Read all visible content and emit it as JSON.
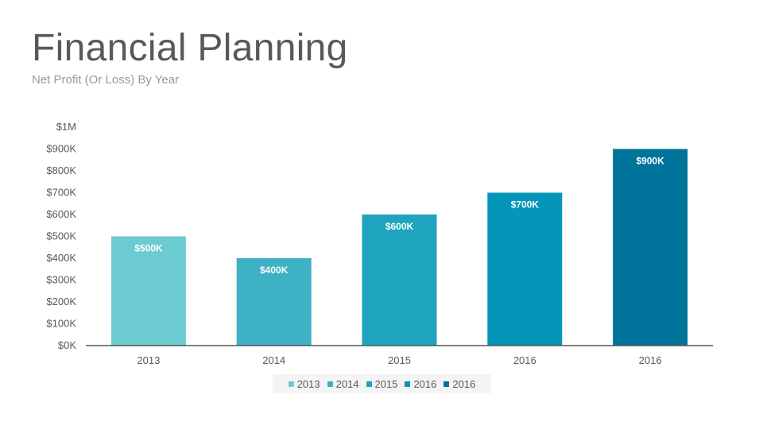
{
  "header": {
    "title": "Financial Planning",
    "subtitle": "Net Profit (Or Loss) By Year"
  },
  "chart_data": {
    "type": "bar",
    "categories": [
      "2013",
      "2014",
      "2015",
      "2016",
      "2016"
    ],
    "values": [
      500000,
      400000,
      600000,
      700000,
      900000
    ],
    "data_labels": [
      "$500K",
      "$400K",
      "$600K",
      "$700K",
      "$900K"
    ],
    "colors": [
      "#6ccbd1",
      "#3eb1c4",
      "#1ea4bf",
      "#0496b8",
      "#00739a"
    ],
    "ylim": [
      0,
      1000000
    ],
    "yticks": [
      0,
      100000,
      200000,
      300000,
      400000,
      500000,
      600000,
      700000,
      800000,
      900000,
      1000000
    ],
    "ytick_labels": [
      "$0K",
      "$100K",
      "$200K",
      "$300K",
      "$400K",
      "$500K",
      "$600K",
      "$700K",
      "$800K",
      "$900K",
      "$1M"
    ],
    "grid": false,
    "legend_position": "bottom",
    "legend": [
      "2013",
      "2014",
      "2015",
      "2016",
      "2016"
    ]
  }
}
